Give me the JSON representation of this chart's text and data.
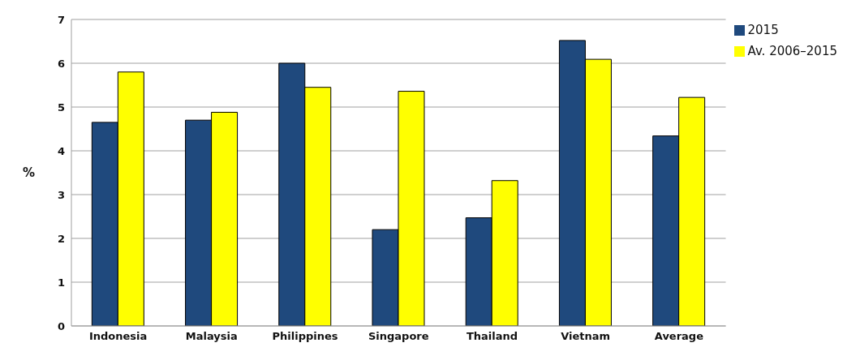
{
  "chart_data": {
    "type": "bar",
    "ylabel": "%",
    "categories": [
      "Indonesia",
      "Malaysia",
      "Philippines",
      "Singapore",
      "Thailand",
      "Vietnam",
      "Average"
    ],
    "series": [
      {
        "name": "2015",
        "color": "#1f497d",
        "values": [
          4.65,
          4.7,
          6.0,
          2.2,
          2.47,
          6.52,
          4.34
        ]
      },
      {
        "name": "Av. 2006–2015",
        "color": "#ffff00",
        "values": [
          5.8,
          4.88,
          5.45,
          5.36,
          3.32,
          6.09,
          5.22
        ]
      }
    ],
    "ylim": [
      0,
      7
    ],
    "yticks": [
      0,
      1,
      2,
      3,
      4,
      5,
      6,
      7
    ],
    "grid": "y",
    "legend": "top right"
  }
}
